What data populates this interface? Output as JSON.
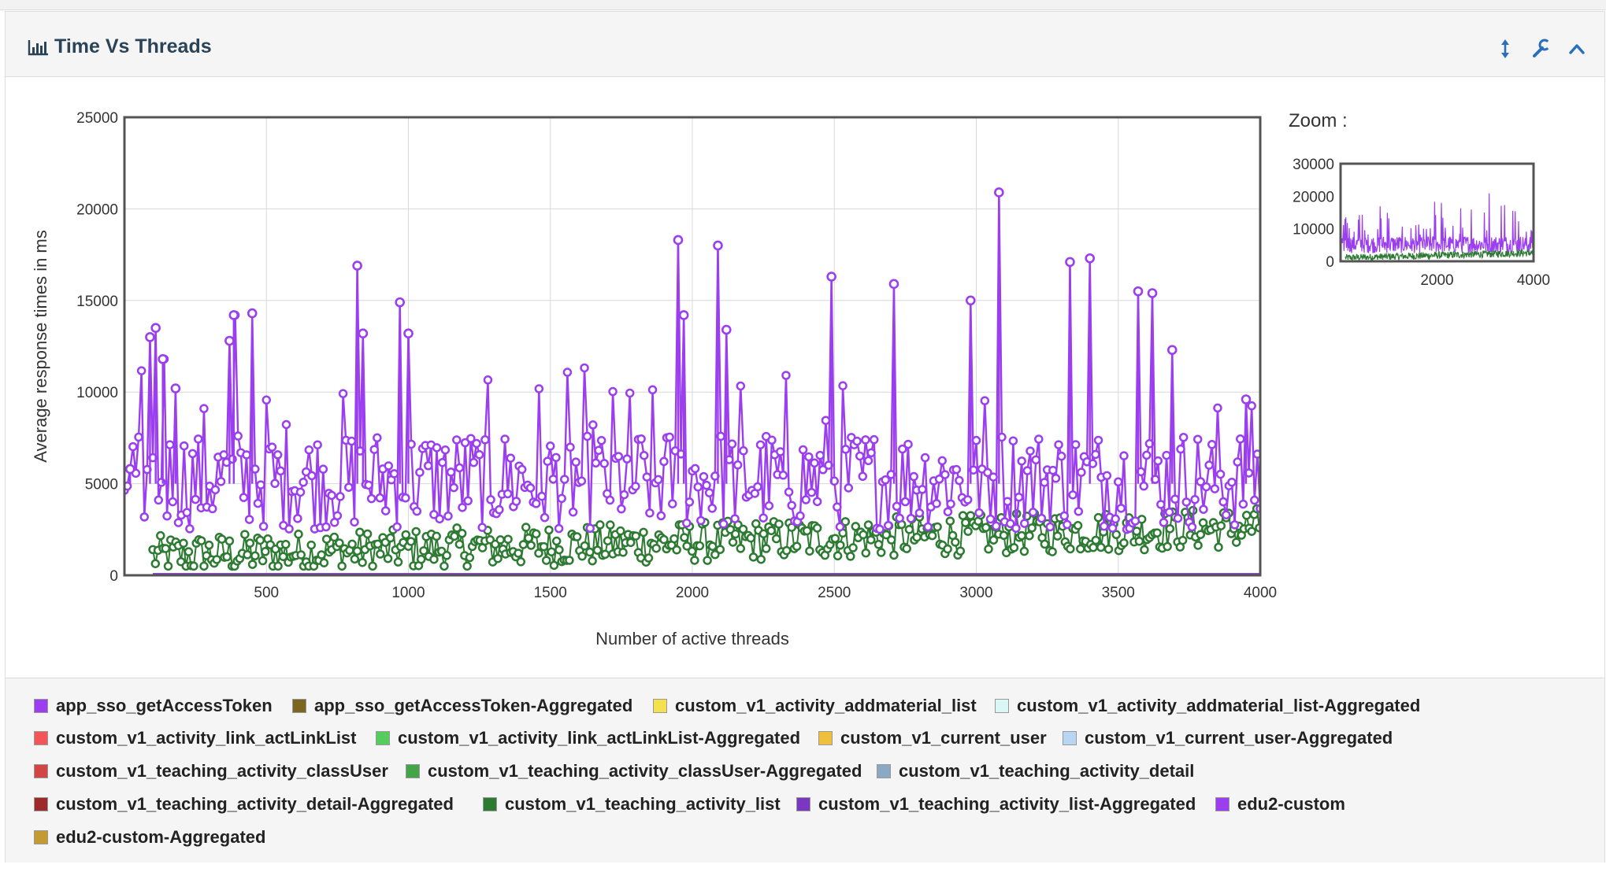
{
  "panel": {
    "title": "Time Vs Threads",
    "icons": [
      "bar-chart-icon",
      "vertical-resize-icon",
      "wrench-icon",
      "chevron-up-icon"
    ]
  },
  "zoom": {
    "label": "Zoom :",
    "y_ticks": [
      "0",
      "10000",
      "20000",
      "30000"
    ],
    "x_ticks": [
      "2000",
      "4000"
    ]
  },
  "chart_data": {
    "type": "scatter",
    "xlabel": "Number of active threads",
    "ylabel": "Average response times in ms",
    "xlim": [
      0,
      4000
    ],
    "ylim": [
      0,
      25000
    ],
    "x_ticks": [
      500,
      1000,
      1500,
      2000,
      2500,
      3000,
      3500,
      4000
    ],
    "y_ticks": [
      0,
      5000,
      10000,
      15000,
      20000,
      25000
    ],
    "grid": true,
    "legend_position": "bottom",
    "series": [
      {
        "name": "app_sso_getAccessToken",
        "color": "#9b3ef0"
      },
      {
        "name": "app_sso_getAccessToken-Aggregated",
        "color": "#7c6520"
      },
      {
        "name": "custom_v1_activity_addmaterial_list",
        "color": "#f5e04e"
      },
      {
        "name": "custom_v1_activity_addmaterial_list-Aggregated",
        "color": "#d9f7f7"
      },
      {
        "name": "custom_v1_activity_link_actLinkList",
        "color": "#f25656"
      },
      {
        "name": "custom_v1_activity_link_actLinkList-Aggregated",
        "color": "#56cc5c"
      },
      {
        "name": "custom_v1_current_user",
        "color": "#efc03c"
      },
      {
        "name": "custom_v1_current_user-Aggregated",
        "color": "#b8d6f4"
      },
      {
        "name": "custom_v1_teaching_activity_classUser",
        "color": "#d24545"
      },
      {
        "name": "custom_v1_teaching_activity_classUser-Aggregated",
        "color": "#46a448"
      },
      {
        "name": "custom_v1_teaching_activity_detail",
        "color": "#8ca9c3"
      },
      {
        "name": "custom_v1_teaching_activity_detail-Aggregated",
        "color": "#9c2a2a"
      },
      {
        "name": "custom_v1_teaching_activity_list",
        "color": "#2d7a32"
      },
      {
        "name": "custom_v1_teaching_activity_list-Aggregated",
        "color": "#7a38c0"
      },
      {
        "name": "edu2-custom",
        "color": "#9b3ef0"
      },
      {
        "name": "edu2-custom-Aggregated",
        "color": "#c49a32"
      }
    ],
    "dominant_series": {
      "name": "app_sso_getAccessToken",
      "typical_range": [
        2000,
        9000
      ],
      "peaks": [
        {
          "x": 20,
          "y": 5800
        },
        {
          "x": 90,
          "y": 13000
        },
        {
          "x": 110,
          "y": 13500
        },
        {
          "x": 135,
          "y": 11800
        },
        {
          "x": 180,
          "y": 10200
        },
        {
          "x": 370,
          "y": 12800
        },
        {
          "x": 385,
          "y": 14200
        },
        {
          "x": 450,
          "y": 14300
        },
        {
          "x": 820,
          "y": 16900
        },
        {
          "x": 840,
          "y": 13200
        },
        {
          "x": 970,
          "y": 14900
        },
        {
          "x": 1000,
          "y": 13200
        },
        {
          "x": 1950,
          "y": 18300
        },
        {
          "x": 1970,
          "y": 14200
        },
        {
          "x": 2090,
          "y": 18000
        },
        {
          "x": 2120,
          "y": 13400
        },
        {
          "x": 2490,
          "y": 16300
        },
        {
          "x": 2710,
          "y": 15900
        },
        {
          "x": 2980,
          "y": 15000
        },
        {
          "x": 3080,
          "y": 20900
        },
        {
          "x": 3330,
          "y": 17100
        },
        {
          "x": 3400,
          "y": 17300
        },
        {
          "x": 3570,
          "y": 15500
        },
        {
          "x": 3620,
          "y": 15400
        },
        {
          "x": 3690,
          "y": 12300
        },
        {
          "x": 3950,
          "y": 9600
        }
      ]
    },
    "secondary_series": {
      "name": "custom_v1_teaching_activity_list",
      "typical_range": [
        500,
        3000
      ]
    }
  }
}
